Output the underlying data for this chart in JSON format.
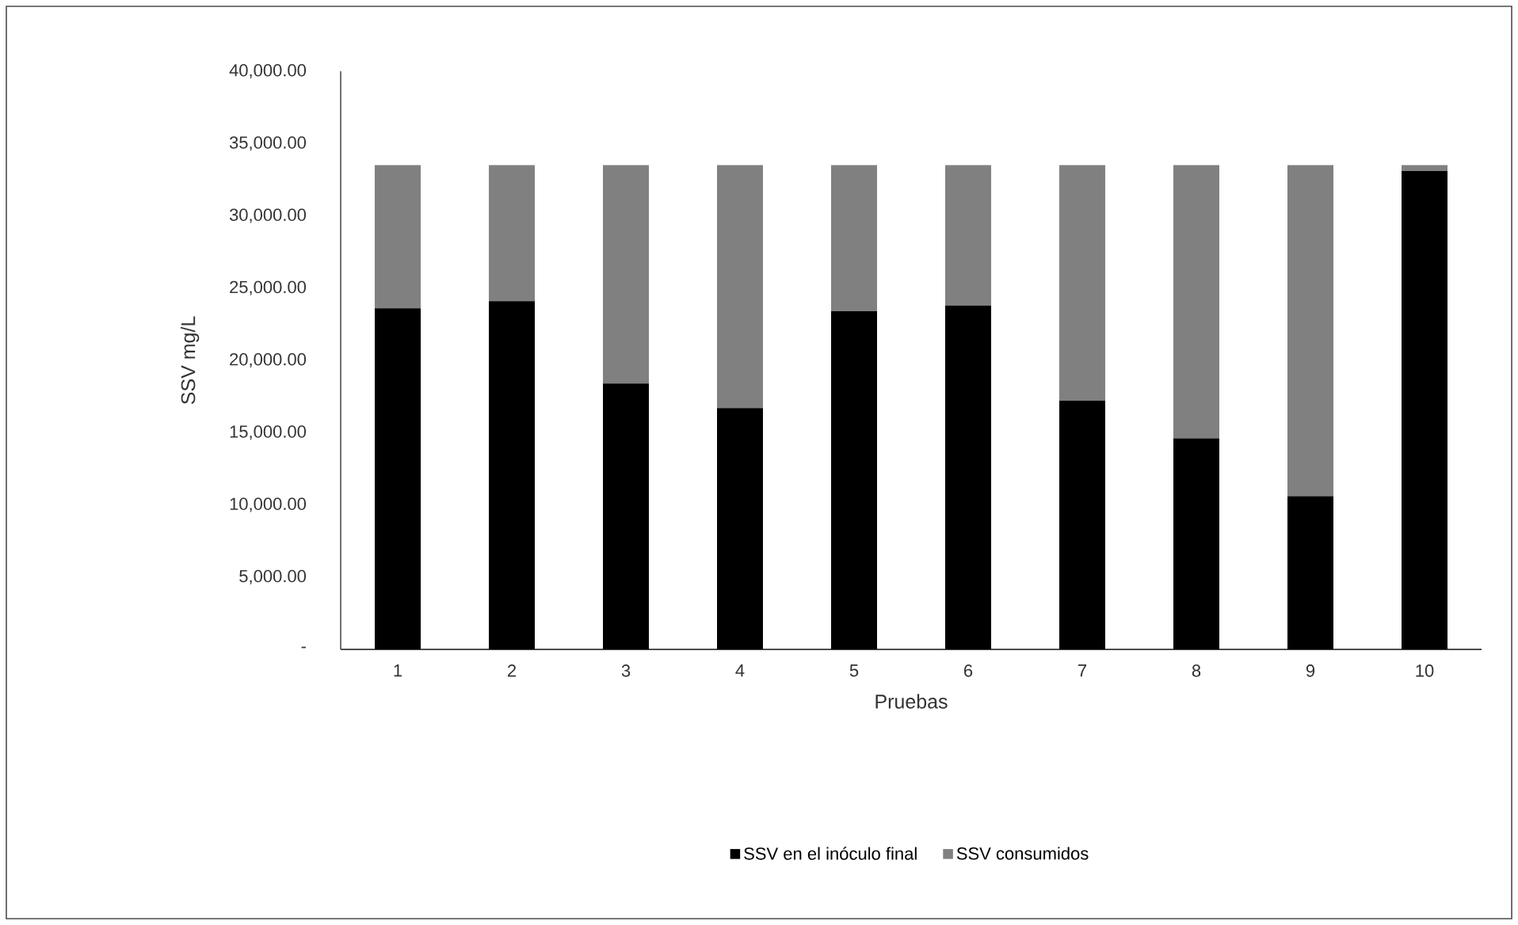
{
  "chart_data": {
    "type": "bar",
    "stacked": true,
    "xlabel": "Pruebas",
    "ylabel": "SSV mg/L",
    "categories": [
      "1",
      "2",
      "3",
      "4",
      "5",
      "6",
      "7",
      "8",
      "9",
      "10"
    ],
    "series": [
      {
        "name": "SSV en el inóculo final",
        "color": "#000000",
        "values": [
          23600,
          24100,
          18400,
          16700,
          23400,
          23800,
          17200,
          14600,
          10600,
          33100
        ]
      },
      {
        "name": "SSV consumidos",
        "color": "#808080",
        "values": [
          9900,
          9400,
          15100,
          16800,
          10100,
          9700,
          16300,
          18900,
          22900,
          400
        ]
      }
    ],
    "ylim": [
      0,
      40000
    ],
    "yticks": [
      {
        "value": 0,
        "label": "-"
      },
      {
        "value": 5000,
        "label": "5,000.00"
      },
      {
        "value": 10000,
        "label": "10,000.00"
      },
      {
        "value": 15000,
        "label": "15,000.00"
      },
      {
        "value": 20000,
        "label": "20,000.00"
      },
      {
        "value": 25000,
        "label": "25,000.00"
      },
      {
        "value": 30000,
        "label": "30,000.00"
      },
      {
        "value": 35000,
        "label": "35,000.00"
      },
      {
        "value": 40000,
        "label": "40,000.00"
      }
    ],
    "grid": false,
    "legend": "bottom"
  }
}
